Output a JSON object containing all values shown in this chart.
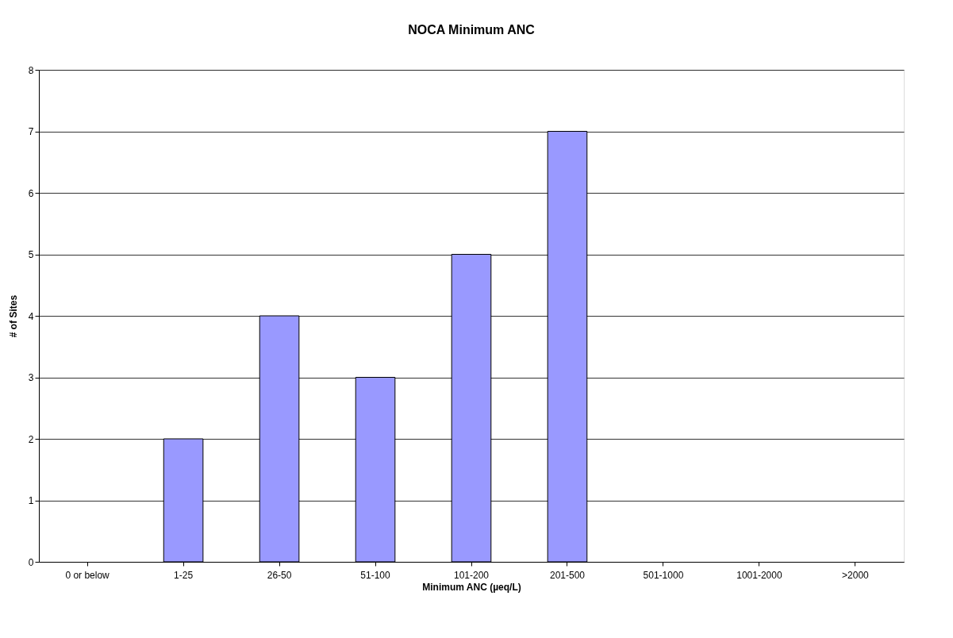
{
  "chart_data": {
    "type": "bar",
    "title": "NOCA Minimum ANC",
    "xlabel": "Minimum ANC (µeq/L)",
    "ylabel": "# of Sites",
    "categories": [
      "0 or below",
      "1-25",
      "26-50",
      "51-100",
      "101-200",
      "201-500",
      "501-1000",
      "1001-2000",
      ">2000"
    ],
    "values": [
      0,
      2,
      4,
      3,
      5,
      7,
      0,
      0,
      0
    ],
    "color": "#9999ff",
    "ylim": [
      0,
      8
    ],
    "yticks": [
      0,
      1,
      2,
      3,
      4,
      5,
      6,
      7,
      8
    ],
    "grid": "y"
  }
}
